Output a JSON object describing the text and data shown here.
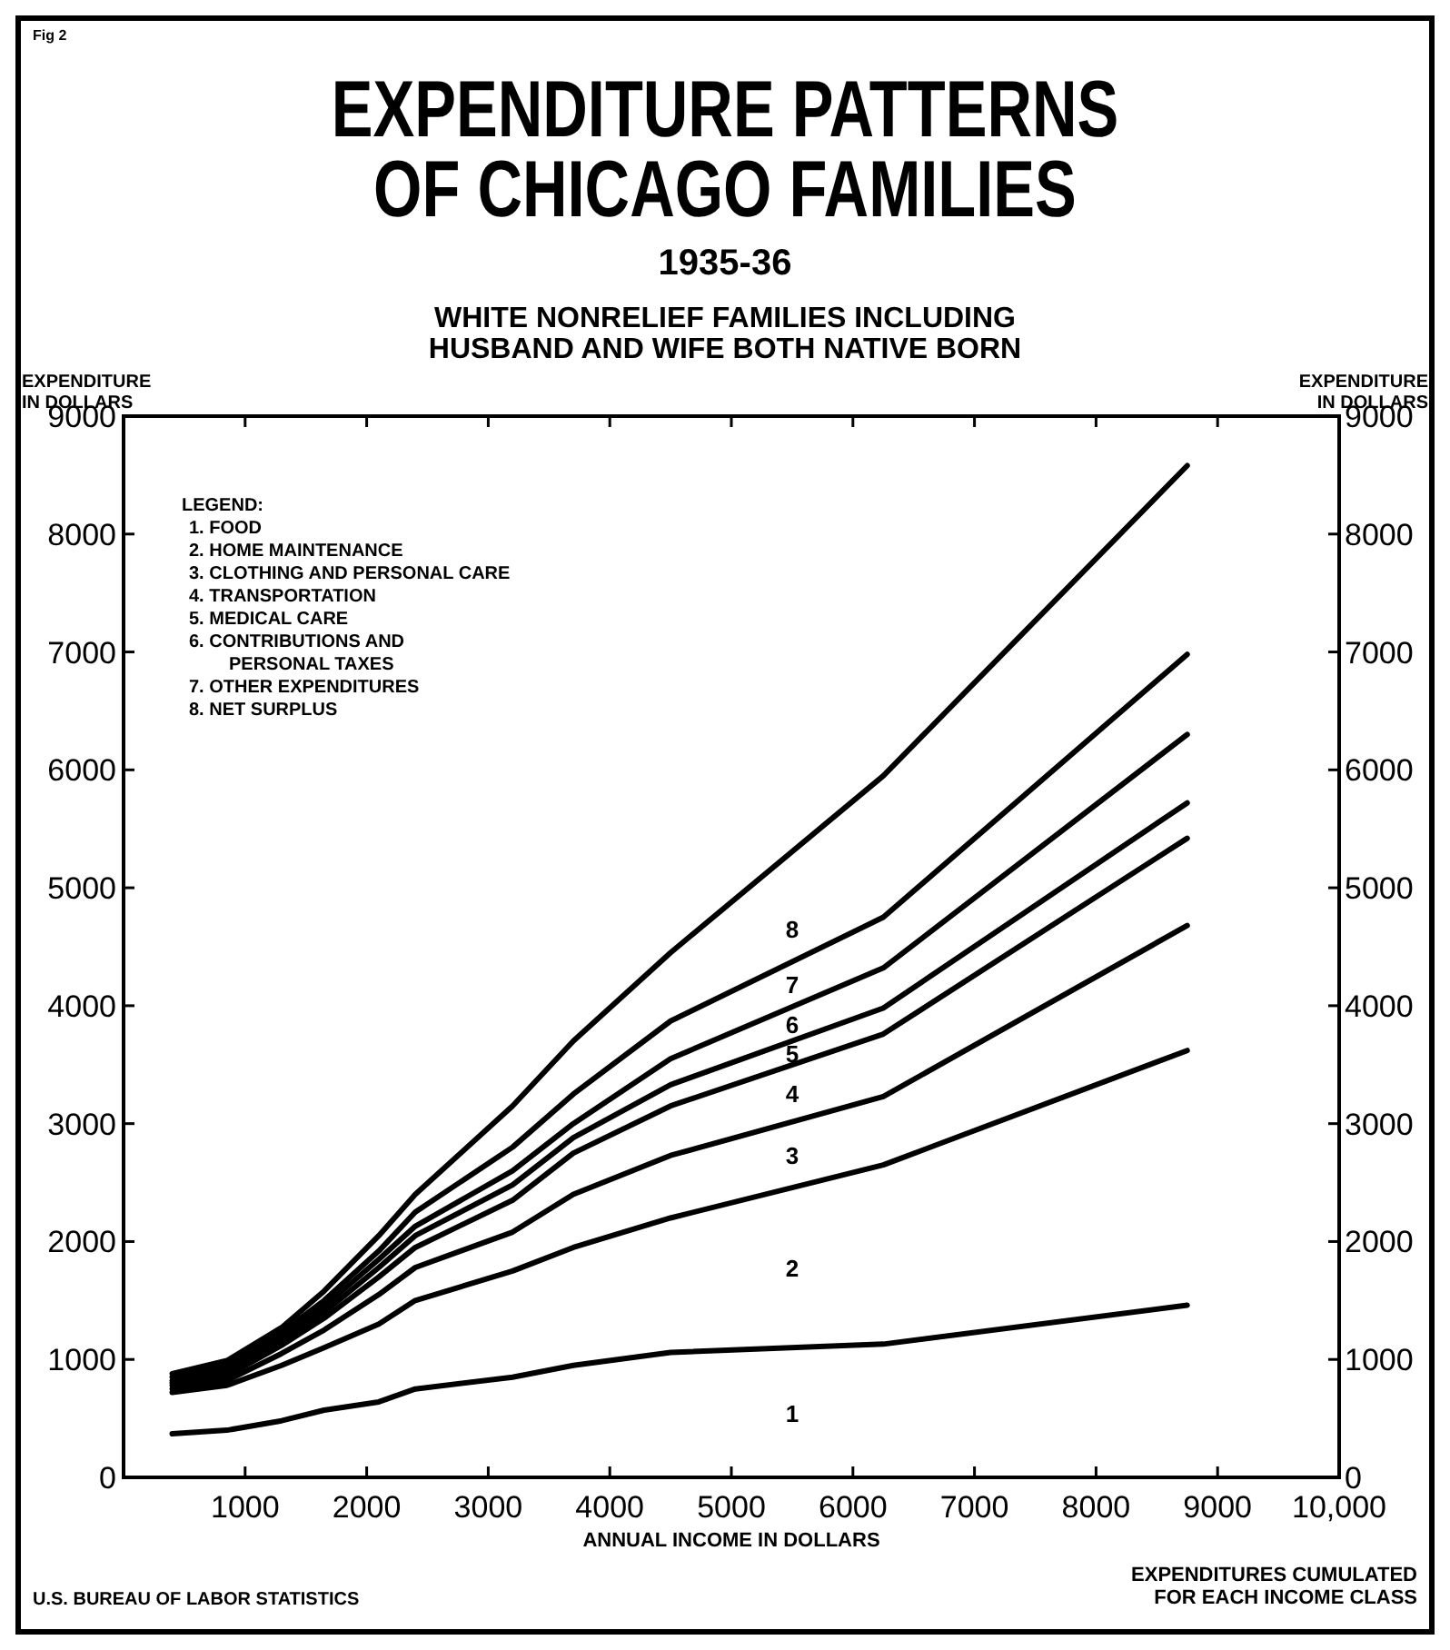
{
  "chart_data": {
    "type": "line",
    "title": "EXPENDITURE PATTERNS\nOF CHICAGO FAMILIES",
    "subtitle": "1935-36\nWHITE NONRELIEF FAMILIES INCLUDING\nHUSBAND AND WIFE BOTH NATIVE BORN",
    "xlabel": "ANNUAL INCOME IN DOLLARS",
    "ylabel": "EXPENDITURE\nIN DOLLARS",
    "y2label": "EXPENDITURE\nIN DOLLARS",
    "grid": false,
    "marker": "none",
    "line_style": "solid",
    "x": [
      400,
      850,
      1300,
      1650,
      2100,
      2400,
      3200,
      3700,
      4500,
      6250,
      8750
    ],
    "xlim": [
      0,
      10000
    ],
    "xticks": [
      1000,
      2000,
      3000,
      4000,
      5000,
      6000,
      7000,
      8000,
      9000,
      {
        "value": 10000,
        "label": "10,000"
      }
    ],
    "ylim": [
      0,
      9000
    ],
    "yticks": [
      0,
      1000,
      2000,
      3000,
      4000,
      5000,
      6000,
      7000,
      8000,
      9000
    ],
    "y2lim": [
      0,
      9000
    ],
    "y2ticks": [
      0,
      1000,
      2000,
      3000,
      4000,
      5000,
      6000,
      7000,
      8000,
      9000
    ],
    "series": [
      {
        "color": "#000000",
        "values": [
          370,
          400,
          480,
          570,
          640,
          750,
          850,
          950,
          1060,
          1130,
          1460
        ]
      },
      {
        "color": "#000000",
        "values": [
          720,
          780,
          950,
          1100,
          1300,
          1500,
          1750,
          1950,
          2200,
          2650,
          3620
        ]
      },
      {
        "color": "#000000",
        "values": [
          750,
          820,
          1050,
          1250,
          1550,
          1780,
          2080,
          2400,
          2730,
          3230,
          4680
        ]
      },
      {
        "color": "#000000",
        "values": [
          780,
          860,
          1120,
          1350,
          1700,
          1950,
          2350,
          2750,
          3150,
          3760,
          5420
        ]
      },
      {
        "color": "#000000",
        "values": [
          800,
          890,
          1160,
          1400,
          1780,
          2050,
          2480,
          2880,
          3330,
          3980,
          5720
        ]
      },
      {
        "color": "#000000",
        "values": [
          820,
          920,
          1190,
          1450,
          1850,
          2130,
          2600,
          3000,
          3550,
          4320,
          6300
        ]
      },
      {
        "color": "#000000",
        "values": [
          850,
          950,
          1230,
          1500,
          1920,
          2250,
          2800,
          3250,
          3870,
          4750,
          6980
        ]
      },
      {
        "color": "#000000",
        "values": [
          880,
          990,
          1270,
          1580,
          2050,
          2400,
          3150,
          3700,
          4450,
          5950,
          8580
        ]
      }
    ],
    "annotations": [
      "Fig 2",
      "U.S. BUREAU OF LABOR STATISTICS",
      "EXPENDITURES CUMULATED\nFOR EACH INCOME CLASS",
      "LEGEND:\n1. FOOD\n2. HOME MAINTENANCE\n3. CLOTHING AND PERSONAL CARE\n4. TRANSPORTATION\n5. MEDICAL CARE\n6. CONTRIBUTIONS AND\nPERSONAL TAXES\n7. OTHER EXPENDITURES\n8. NET SURPLUS",
      "1",
      "2",
      "3",
      "4",
      "5",
      "6",
      "7",
      "8"
    ]
  }
}
